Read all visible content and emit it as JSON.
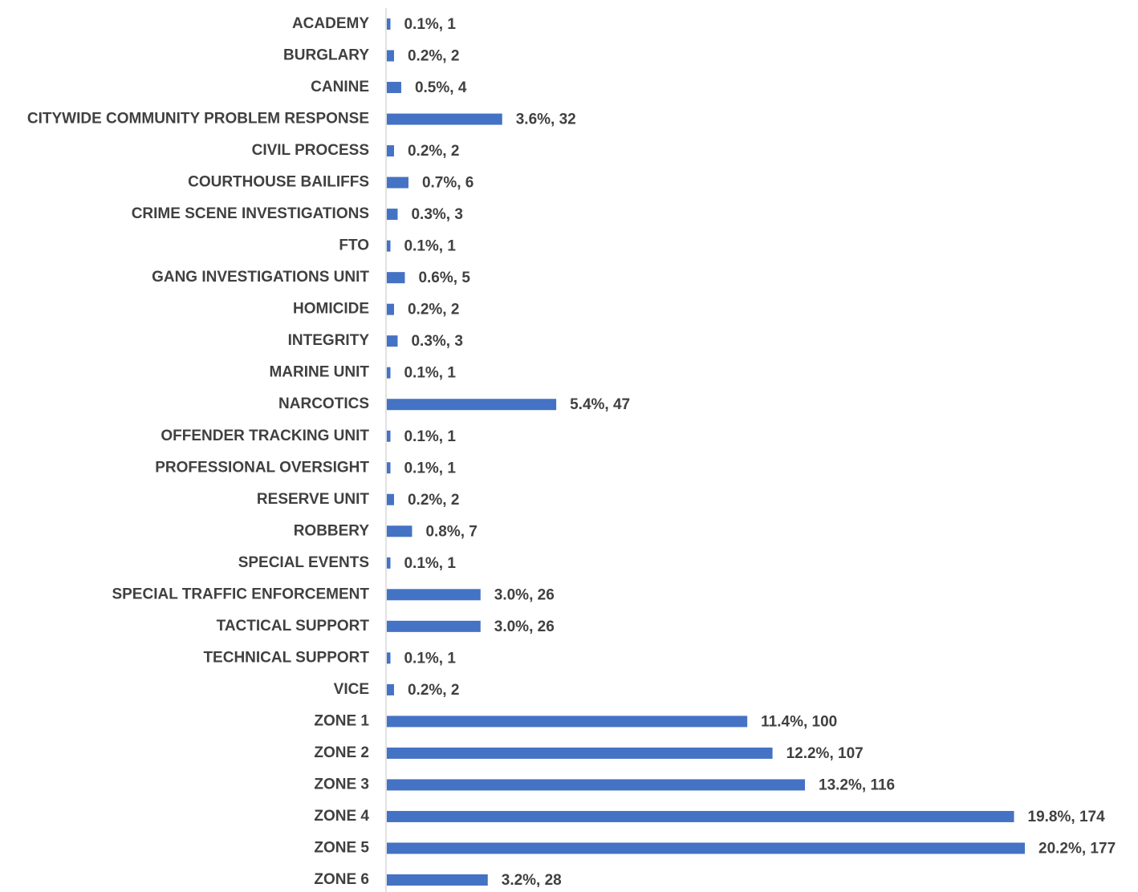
{
  "chart_data": {
    "type": "bar",
    "orientation": "horizontal",
    "color": "#4472c4",
    "categories": [
      "ACADEMY",
      "BURGLARY",
      "CANINE",
      "CITYWIDE COMMUNITY PROBLEM RESPONSE",
      "CIVIL PROCESS",
      "COURTHOUSE BAILIFFS",
      "CRIME SCENE INVESTIGATIONS",
      "FTO",
      "GANG INVESTIGATIONS UNIT",
      "HOMICIDE",
      "INTEGRITY",
      "MARINE UNIT",
      "NARCOTICS",
      "OFFENDER TRACKING UNIT",
      "PROFESSIONAL OVERSIGHT",
      "RESERVE UNIT",
      "ROBBERY",
      "SPECIAL EVENTS",
      "SPECIAL TRAFFIC ENFORCEMENT",
      "TACTICAL SUPPORT",
      "TECHNICAL SUPPORT",
      "VICE",
      "ZONE 1",
      "ZONE 2",
      "ZONE 3",
      "ZONE 4",
      "ZONE 5",
      "ZONE 6"
    ],
    "values": [
      1,
      2,
      4,
      32,
      2,
      6,
      3,
      1,
      5,
      2,
      3,
      1,
      47,
      1,
      1,
      2,
      7,
      1,
      26,
      26,
      1,
      2,
      100,
      107,
      116,
      174,
      177,
      28
    ],
    "value_labels": [
      "0.1%, 1",
      "0.2%, 2",
      "0.5%, 4",
      "3.6%, 32",
      "0.2%, 2",
      "0.7%, 6",
      "0.3%, 3",
      "0.1%, 1",
      "0.6%, 5",
      "0.2%, 2",
      "0.3%, 3",
      "0.1%, 1",
      "5.4%, 47",
      "0.1%, 1",
      "0.1%, 1",
      "0.2%, 2",
      "0.8%, 7",
      "0.1%, 1",
      "3.0%, 26",
      "3.0%, 26",
      "0.1%, 1",
      "0.2%, 2",
      "11.4%, 100",
      "12.2%, 107",
      "13.2%, 116",
      "19.8%, 174",
      "20.2%, 177",
      "3.2%, 28"
    ]
  }
}
